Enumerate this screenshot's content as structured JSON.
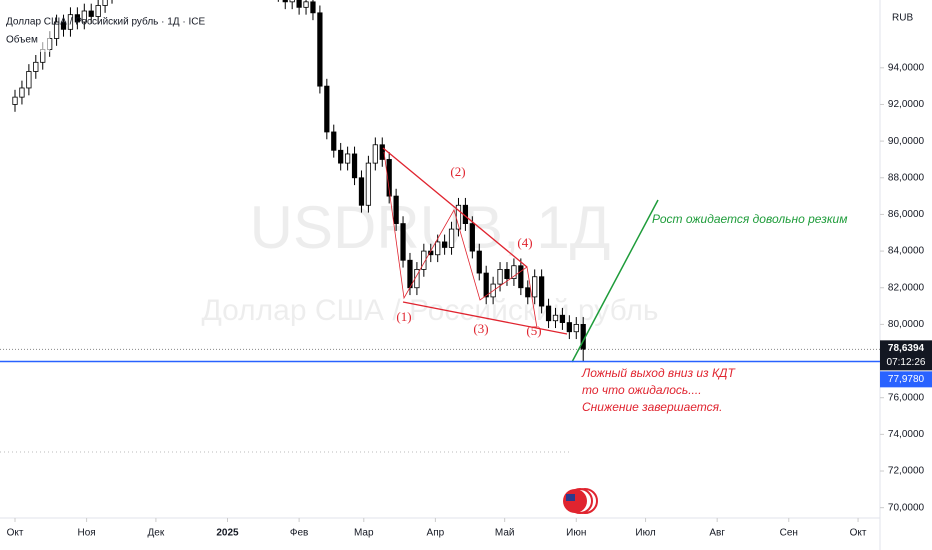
{
  "chart_data": {
    "type": "candlestick",
    "title": "Доллар США / Российский рубль · 1Д · ICE",
    "indicator": "Объем",
    "watermark": [
      "USDRUB, 1Д",
      "Доллар США / Российский рубль"
    ],
    "currency": "RUB",
    "x": [
      0,
      3,
      6,
      9,
      12,
      15,
      18,
      21,
      24,
      27,
      30,
      33,
      36,
      39,
      42,
      45,
      48,
      51,
      54,
      57,
      60,
      63,
      66,
      69,
      72,
      75,
      78,
      81,
      84,
      87,
      90,
      93,
      96,
      99,
      102,
      105,
      108,
      111,
      114,
      117,
      120,
      123,
      126,
      129,
      132,
      135,
      138,
      141,
      144,
      147,
      150,
      153,
      156,
      159,
      162,
      165,
      168,
      171,
      174,
      177,
      180,
      183,
      186,
      189,
      192,
      195,
      198,
      201,
      204,
      207,
      210,
      213,
      216,
      219,
      222,
      225,
      228,
      231,
      234,
      237,
      240,
      243,
      246
    ],
    "open": [
      92.0,
      92.4,
      92.9,
      93.8,
      94.3,
      95.0,
      95.6,
      96.5,
      96.1,
      96.9,
      96.5,
      97.1,
      96.8,
      97.4,
      97.9,
      98.6,
      99.5,
      100.5,
      101.3,
      102.5,
      104.0,
      103.0,
      102.0,
      101.0,
      100.5,
      101.5,
      101.0,
      100.2,
      101.0,
      101.8,
      101.2,
      100.8,
      100.5,
      100.0,
      99.5,
      99.0,
      98.8,
      98.5,
      98.2,
      98.0,
      97.6,
      97.9,
      97.3,
      97.6,
      97.0,
      93.0,
      90.5,
      89.5,
      88.8,
      89.3,
      88.0,
      86.5,
      88.8,
      89.8,
      89.0,
      87.0,
      85.5,
      83.5,
      82.0,
      83.0,
      84.0,
      83.8,
      84.5,
      84.2,
      85.2,
      86.5,
      85.5,
      84.0,
      82.8,
      81.5,
      82.2,
      83.0,
      82.5,
      83.2,
      82.0,
      81.5,
      82.6,
      81.0,
      80.2,
      80.5,
      80.1,
      79.6,
      80.0
    ],
    "high": [
      92.8,
      93.3,
      94.2,
      94.7,
      95.4,
      96.0,
      96.9,
      96.9,
      97.3,
      97.3,
      97.5,
      97.5,
      97.8,
      98.3,
      99.0,
      99.9,
      100.9,
      101.7,
      102.9,
      104.4,
      104.4,
      103.4,
      102.4,
      101.4,
      101.9,
      101.9,
      101.4,
      101.4,
      102.2,
      102.2,
      101.6,
      101.2,
      100.9,
      100.4,
      99.9,
      99.4,
      99.2,
      98.9,
      98.6,
      98.4,
      98.3,
      98.3,
      98.0,
      98.0,
      97.4,
      93.4,
      90.9,
      89.9,
      89.7,
      89.7,
      88.4,
      89.2,
      90.2,
      90.2,
      89.4,
      87.4,
      85.9,
      83.9,
      83.4,
      84.4,
      84.4,
      84.9,
      84.9,
      85.6,
      86.9,
      86.9,
      85.9,
      84.4,
      83.2,
      82.6,
      83.4,
      83.4,
      83.6,
      83.6,
      82.4,
      83.0,
      83.0,
      81.4,
      80.9,
      80.9,
      80.5,
      80.4,
      80.4
    ],
    "low": [
      91.6,
      92.0,
      92.5,
      93.4,
      93.9,
      94.6,
      95.2,
      95.7,
      95.7,
      96.1,
      96.1,
      96.4,
      96.4,
      97.0,
      97.5,
      98.2,
      99.1,
      100.1,
      100.9,
      102.1,
      102.6,
      101.6,
      100.6,
      100.1,
      100.1,
      100.6,
      99.8,
      99.8,
      100.6,
      100.8,
      100.4,
      100.1,
      99.6,
      99.1,
      98.6,
      98.4,
      98.1,
      97.8,
      97.6,
      97.2,
      97.2,
      96.9,
      96.9,
      96.6,
      92.6,
      90.1,
      89.1,
      88.4,
      88.4,
      87.6,
      86.1,
      86.1,
      88.4,
      88.6,
      86.6,
      85.1,
      83.1,
      81.6,
      81.6,
      82.6,
      83.4,
      83.4,
      83.8,
      83.8,
      84.8,
      85.1,
      83.6,
      82.4,
      81.1,
      81.1,
      81.8,
      82.1,
      82.1,
      81.6,
      81.1,
      81.1,
      80.6,
      79.8,
      79.8,
      79.7,
      79.2,
      79.2,
      77.978
    ],
    "close": [
      92.4,
      92.9,
      93.8,
      94.3,
      95.0,
      95.6,
      96.5,
      96.1,
      96.9,
      96.5,
      97.1,
      96.8,
      97.4,
      97.9,
      98.6,
      99.5,
      100.5,
      101.3,
      102.5,
      104.0,
      103.0,
      102.0,
      101.0,
      100.5,
      101.5,
      101.0,
      100.2,
      101.0,
      101.8,
      101.2,
      100.8,
      100.5,
      100.0,
      99.5,
      99.0,
      98.8,
      98.5,
      98.2,
      98.0,
      97.6,
      97.9,
      97.3,
      97.6,
      97.0,
      93.0,
      90.5,
      89.5,
      88.8,
      89.3,
      88.0,
      86.5,
      88.8,
      89.8,
      89.0,
      87.0,
      85.5,
      83.5,
      82.0,
      83.0,
      84.0,
      83.8,
      84.5,
      84.2,
      85.2,
      86.5,
      85.5,
      84.0,
      82.8,
      81.5,
      82.2,
      83.0,
      82.5,
      83.2,
      82.0,
      81.5,
      82.6,
      81.0,
      80.2,
      80.5,
      80.1,
      79.6,
      80.0,
      78.64
    ],
    "up_color": "#ffffff",
    "down_color": "#000000",
    "xlim": [
      -6.5,
      374.5
    ],
    "xticks": [
      {
        "value": 0,
        "label": "Окт"
      },
      {
        "value": 31,
        "label": "Ноя"
      },
      {
        "value": 61,
        "label": "Дек"
      },
      {
        "value": 92,
        "label": "2025"
      },
      {
        "value": 123,
        "label": "Фев"
      },
      {
        "value": 151,
        "label": "Мар"
      },
      {
        "value": 182,
        "label": "Апр"
      },
      {
        "value": 212,
        "label": "Май"
      },
      {
        "value": 243,
        "label": "Июн"
      },
      {
        "value": 273,
        "label": "Июл"
      },
      {
        "value": 304,
        "label": "Авг"
      },
      {
        "value": 335,
        "label": "Сен"
      },
      {
        "value": 365,
        "label": "Окт"
      }
    ],
    "ylim": [
      69.0,
      97.7
    ],
    "yticks": [
      {
        "value": 70,
        "label": "70,0000"
      },
      {
        "value": 72,
        "label": "72,0000"
      },
      {
        "value": 74,
        "label": "74,0000"
      },
      {
        "value": 76,
        "label": "76,0000"
      },
      {
        "value": 80,
        "label": "80,0000"
      },
      {
        "value": 82,
        "label": "82,0000"
      },
      {
        "value": 84,
        "label": "84,0000"
      },
      {
        "value": 86,
        "label": "86,0000"
      },
      {
        "value": 88,
        "label": "88,0000"
      },
      {
        "value": 90,
        "label": "90,0000"
      },
      {
        "value": 92,
        "label": "92,0000"
      },
      {
        "value": 94,
        "label": "94,0000"
      }
    ],
    "last_price": {
      "value": 78.6394,
      "label": "78,6394"
    },
    "countdown": "07:12:26",
    "level": {
      "value": 77.978,
      "label": "77,9780",
      "color": "#2962ff"
    },
    "grid": false,
    "wave_labels": [
      "(1)",
      "(2)",
      "(3)",
      "(4)",
      "(5)"
    ],
    "annotations": {
      "growth": "Рост ожидается довольно резким",
      "breakout": [
        "Ложный выход вниз из КДТ",
        "то что ожидалось....",
        "Снижение завершается."
      ]
    }
  }
}
